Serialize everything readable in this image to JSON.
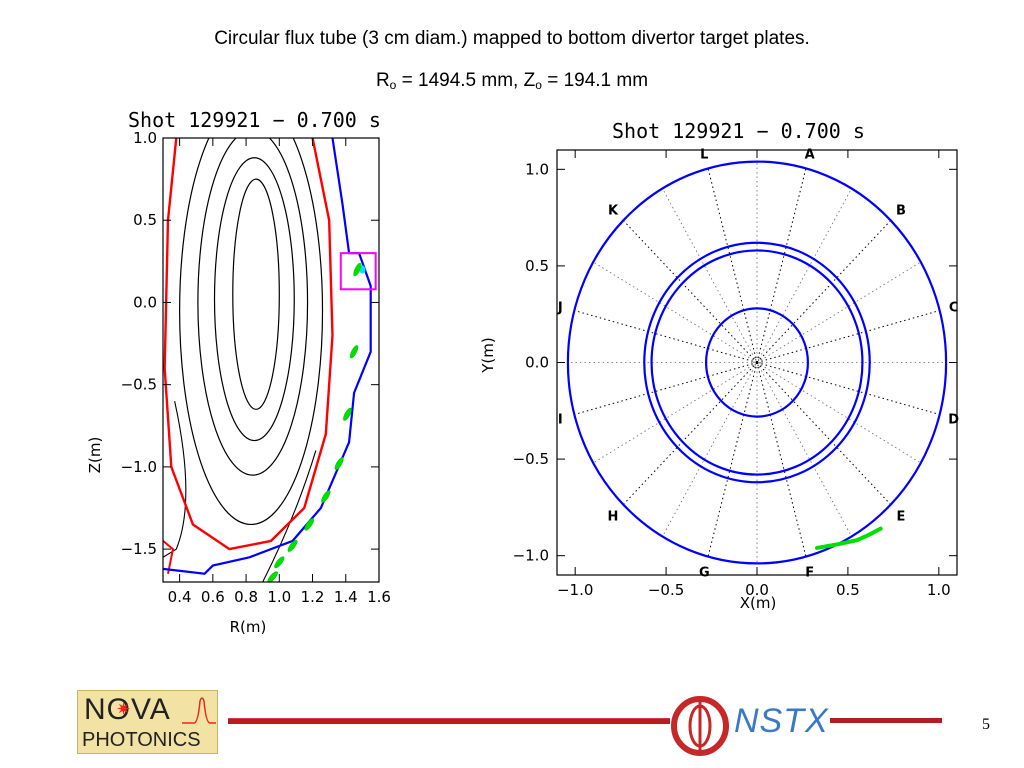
{
  "slide": {
    "title_line1": "Circular flux tube (3 cm diam.) mapped to bottom divertor target plates.",
    "title_line2_r": "R",
    "title_line2_sub_r": "o",
    "title_line2_mid": " = 1494.5 mm, Z",
    "title_line2_sub_z": "o",
    "title_line2_end": " = 194.1 mm",
    "page_number": "5",
    "logo_left_line1": "NOVA",
    "logo_left_line2": "PHOTONICS",
    "logo_right_text": "NSTX"
  },
  "chart_data": [
    {
      "type": "line",
      "title": "Shot 129921 − 0.700 s",
      "xlabel": "R(m)",
      "ylabel": "Z(m)",
      "xlim": [
        0.3,
        1.6
      ],
      "ylim": [
        -1.7,
        1.0
      ],
      "x_ticks": [
        "0.4",
        "0.6",
        "0.8",
        "1.0",
        "1.2",
        "1.4",
        "1.6"
      ],
      "y_ticks": [
        "1.0",
        "0.5",
        "0.0",
        "−0.5",
        "−1.0",
        "−1.5"
      ],
      "x_tick_values": [
        0.4,
        0.6,
        0.8,
        1.0,
        1.2,
        1.4,
        1.6
      ],
      "y_tick_values": [
        1.0,
        0.5,
        0.0,
        -0.5,
        -1.0,
        -1.5
      ],
      "flux_contours": [
        {
          "rc": 0.86,
          "zc": 0.05,
          "a": 0.14,
          "b": 0.7
        },
        {
          "rc": 0.85,
          "zc": 0.02,
          "a": 0.24,
          "b": 0.86
        },
        {
          "rc": 0.84,
          "zc": 0.0,
          "a": 0.33,
          "b": 1.05
        },
        {
          "rc": 0.83,
          "zc": -0.05,
          "a": 0.43,
          "b": 1.3
        }
      ],
      "separatrix": [
        [
          0.38,
          1.0
        ],
        [
          0.33,
          0.5
        ],
        [
          0.31,
          -0.4
        ],
        [
          0.35,
          -1.0
        ],
        [
          0.48,
          -1.35
        ],
        [
          0.7,
          -1.5
        ],
        [
          0.95,
          -1.45
        ],
        [
          1.15,
          -1.25
        ],
        [
          1.28,
          -0.8
        ],
        [
          1.32,
          -0.2
        ],
        [
          1.3,
          0.5
        ],
        [
          1.2,
          1.0
        ]
      ],
      "wall": [
        [
          1.32,
          1.0
        ],
        [
          1.38,
          0.6
        ],
        [
          1.42,
          0.3
        ],
        [
          1.48,
          0.3
        ],
        [
          1.55,
          0.1
        ],
        [
          1.55,
          -0.3
        ],
        [
          1.45,
          -0.55
        ],
        [
          1.42,
          -0.85
        ],
        [
          1.25,
          -1.25
        ],
        [
          1.08,
          -1.45
        ],
        [
          0.82,
          -1.55
        ],
        [
          0.6,
          -1.6
        ],
        [
          0.55,
          -1.65
        ],
        [
          0.3,
          -1.62
        ]
      ],
      "tube_spots": [
        [
          1.47,
          0.2
        ],
        [
          1.45,
          -0.3
        ],
        [
          1.41,
          -0.68
        ],
        [
          1.36,
          -0.98
        ],
        [
          1.28,
          -1.18
        ],
        [
          1.18,
          -1.35
        ],
        [
          1.08,
          -1.48
        ],
        [
          1.0,
          -1.58
        ],
        [
          0.96,
          -1.67
        ]
      ],
      "series": [
        {
          "name": "",
          "color": "#0000ff"
        },
        {
          "name": "",
          "color": "#ff0000"
        },
        {
          "name": "",
          "color": "#00e000"
        },
        {
          "name": "",
          "color": "#ff00ff"
        }
      ],
      "colors": {
        "contours": "#000000",
        "separatrix": "#ff0000",
        "wall": "#0000ff",
        "tube": "#00e000",
        "box": "#ff00ff",
        "spot": "#00e5ff"
      }
    },
    {
      "type": "line",
      "title": "Shot 129921 − 0.700 s",
      "xlabel": "X(m)",
      "ylabel": "Y(m)",
      "xlim": [
        -1.1,
        1.1
      ],
      "ylim": [
        -1.1,
        1.1
      ],
      "x_ticks": [
        "−1.0",
        "−0.5",
        "0.0",
        "0.5",
        "1.0"
      ],
      "y_ticks": [
        "1.0",
        "0.5",
        "0.0",
        "−0.5",
        "−1.0"
      ],
      "x_tick_values": [
        -1.0,
        -0.5,
        0.0,
        0.5,
        1.0
      ],
      "y_tick_values": [
        1.0,
        0.5,
        0.0,
        -0.5,
        -1.0
      ],
      "circles": [
        1.04,
        0.62,
        0.58,
        0.28
      ],
      "sector_labels": [
        "A",
        "B",
        "C",
        "D",
        "E",
        "F",
        "G",
        "H",
        "I",
        "J",
        "K",
        "L"
      ],
      "sector_angles_deg": [
        75,
        45,
        15,
        -15,
        -45,
        -75,
        -105,
        -135,
        -165,
        165,
        135,
        105
      ],
      "tube_trace": [
        [
          0.33,
          -0.96
        ],
        [
          0.45,
          -0.94
        ],
        [
          0.55,
          -0.92
        ],
        [
          0.62,
          -0.89
        ],
        [
          0.68,
          -0.86
        ]
      ],
      "colors": {
        "circles": "#0000ff",
        "tube": "#00e000",
        "spokes": "#000000"
      }
    }
  ]
}
